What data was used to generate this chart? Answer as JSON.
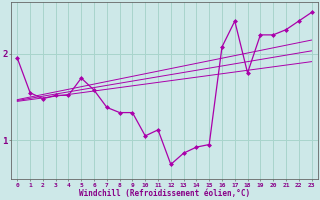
{
  "xlabel": "Windchill (Refroidissement éolien,°C)",
  "ylabel": "",
  "background_color": "#cde8e8",
  "grid_color": "#a8d4cc",
  "line_color": "#aa00aa",
  "hours": [
    0,
    1,
    2,
    3,
    4,
    5,
    6,
    7,
    8,
    9,
    10,
    11,
    12,
    13,
    14,
    15,
    16,
    17,
    18,
    19,
    20,
    21,
    22,
    23
  ],
  "main_data": [
    1.95,
    1.55,
    1.48,
    1.52,
    1.52,
    1.72,
    1.58,
    1.38,
    1.32,
    1.32,
    1.05,
    1.12,
    0.72,
    0.85,
    0.92,
    0.95,
    2.08,
    2.38,
    1.78,
    2.22,
    2.22,
    2.28,
    2.38,
    2.48
  ],
  "trend1": [
    1.45,
    1.47,
    1.49,
    1.51,
    1.53,
    1.55,
    1.57,
    1.59,
    1.61,
    1.63,
    1.65,
    1.67,
    1.69,
    1.71,
    1.73,
    1.75,
    1.77,
    1.79,
    1.81,
    1.83,
    1.85,
    1.87,
    1.89,
    1.91
  ],
  "trend2": [
    1.47,
    1.5,
    1.53,
    1.56,
    1.59,
    1.62,
    1.65,
    1.68,
    1.71,
    1.74,
    1.77,
    1.8,
    1.83,
    1.86,
    1.89,
    1.92,
    1.95,
    1.98,
    2.01,
    2.04,
    2.07,
    2.1,
    2.13,
    2.16
  ],
  "trend3": [
    1.46,
    1.485,
    1.51,
    1.535,
    1.56,
    1.585,
    1.61,
    1.635,
    1.66,
    1.685,
    1.71,
    1.735,
    1.76,
    1.785,
    1.81,
    1.835,
    1.86,
    1.885,
    1.91,
    1.935,
    1.96,
    1.985,
    2.01,
    2.035
  ],
  "ylim": [
    0.55,
    2.6
  ],
  "yticks": [
    1,
    2
  ],
  "xlim": [
    -0.5,
    23.5
  ],
  "font_color": "#880088"
}
